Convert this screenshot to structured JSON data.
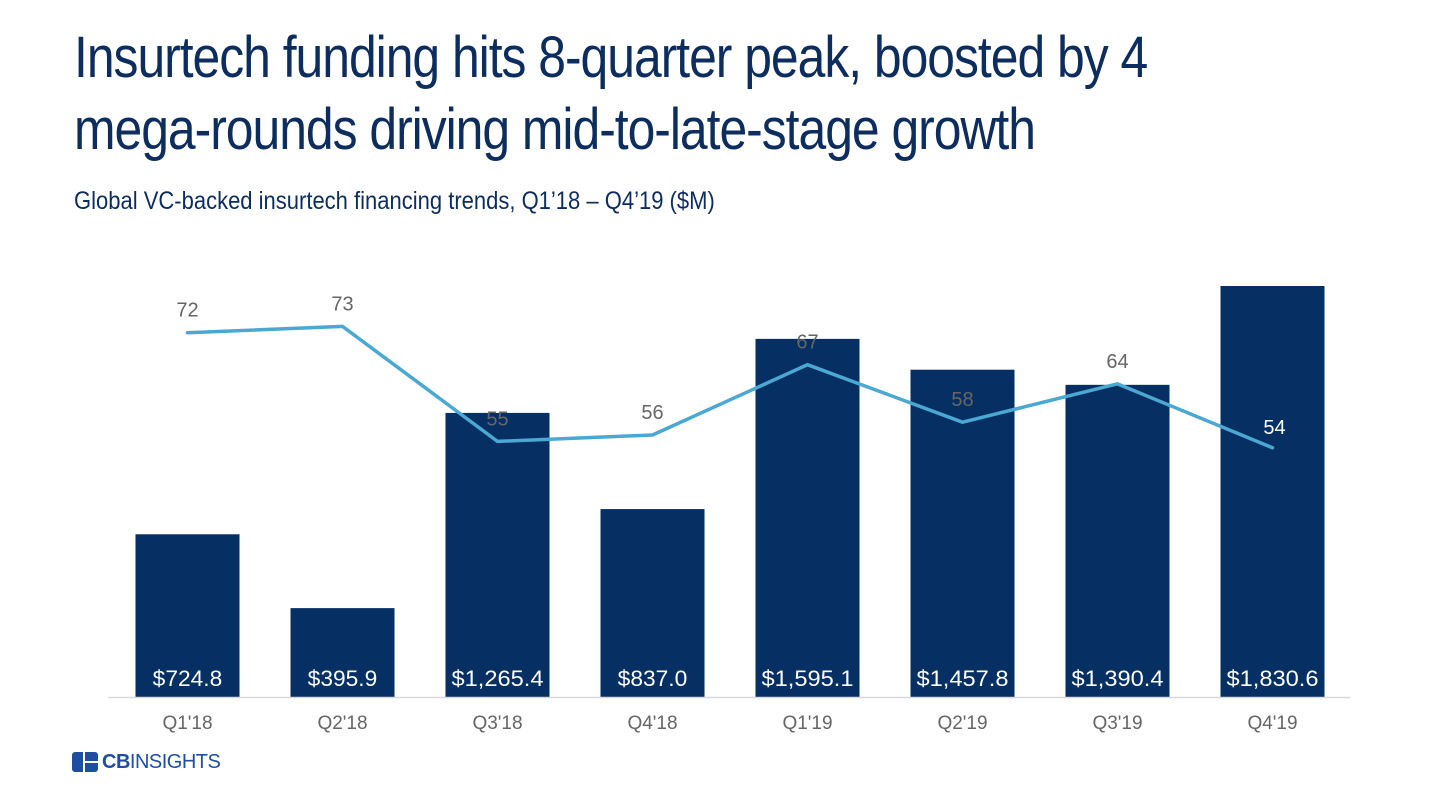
{
  "header": {
    "title_line1": "Insurtech funding hits 8-quarter peak, boosted by 4",
    "title_line2": "mega-rounds driving mid-to-late-stage growth",
    "subtitle": "Global VC-backed insurtech financing trends, Q1’18 – Q4’19 ($M)"
  },
  "brand": {
    "logo_cb": "CB",
    "logo_insights": "INSIGHTS"
  },
  "colors": {
    "bar": "#063063",
    "line": "#4aa8d3",
    "title": "#0c2d5e",
    "label": "#666666",
    "bar_label": "#ffffff",
    "brand": "#1f4ea1"
  },
  "chart_data": {
    "type": "bar",
    "title": "Global VC-backed insurtech financing trends, Q1’18 – Q4’19 ($M)",
    "categories": [
      "Q1'18",
      "Q2'18",
      "Q3'18",
      "Q4'18",
      "Q1'19",
      "Q2'19",
      "Q3'19",
      "Q4'19"
    ],
    "series": [
      {
        "name": "Funding ($M)",
        "type": "bar",
        "values": [
          724.8,
          395.9,
          1265.4,
          837.0,
          1595.1,
          1457.8,
          1390.4,
          1830.6
        ],
        "labels": [
          "$724.8",
          "$395.9",
          "$1,265.4",
          "$837.0",
          "$1,595.1",
          "$1,457.8",
          "$1,390.4",
          "$1,830.6"
        ]
      },
      {
        "name": "Deals",
        "type": "line",
        "values": [
          72,
          73,
          55,
          56,
          67,
          58,
          64,
          54
        ],
        "labels": [
          "72",
          "73",
          "55",
          "56",
          "67",
          "58",
          "64",
          "54"
        ]
      }
    ],
    "xlabel": "",
    "ylabel": "",
    "ylim": [
      0,
      1830.6
    ],
    "y2lim": [
      15,
      79
    ],
    "grid": false,
    "legend": "none"
  }
}
